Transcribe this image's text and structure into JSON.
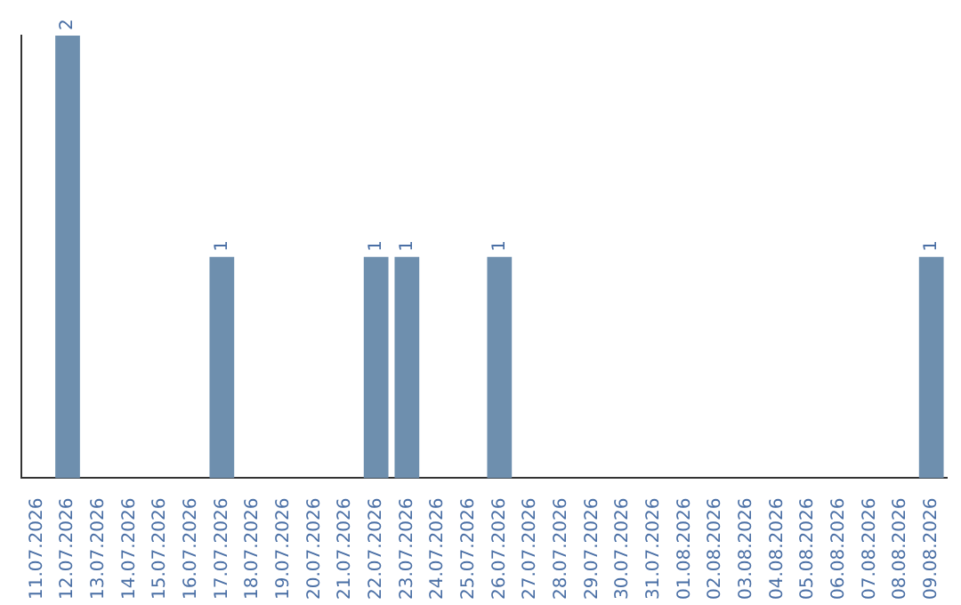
{
  "chart_data": {
    "type": "bar",
    "categories": [
      "11.07.2026",
      "12.07.2026",
      "13.07.2026",
      "14.07.2026",
      "15.07.2026",
      "16.07.2026",
      "17.07.2026",
      "18.07.2026",
      "19.07.2026",
      "20.07.2026",
      "21.07.2026",
      "22.07.2026",
      "23.07.2026",
      "24.07.2026",
      "25.07.2026",
      "26.07.2026",
      "27.07.2026",
      "28.07.2026",
      "29.07.2026",
      "30.07.2026",
      "31.07.2026",
      "01.08.2026",
      "02.08.2026",
      "03.08.2026",
      "04.08.2026",
      "05.08.2026",
      "06.08.2026",
      "07.08.2026",
      "08.08.2026",
      "09.08.2026"
    ],
    "values": [
      0,
      2,
      0,
      0,
      0,
      0,
      1,
      0,
      0,
      0,
      0,
      1,
      1,
      0,
      0,
      1,
      0,
      0,
      0,
      0,
      0,
      0,
      0,
      0,
      0,
      0,
      0,
      0,
      0,
      1
    ],
    "value_labels": [
      null,
      "2",
      null,
      null,
      null,
      null,
      "1",
      null,
      null,
      null,
      null,
      "1",
      "1",
      null,
      null,
      "1",
      null,
      null,
      null,
      null,
      null,
      null,
      null,
      null,
      null,
      null,
      null,
      null,
      null,
      "1"
    ],
    "color": "#6e8fae",
    "legend": false,
    "grid": false
  }
}
